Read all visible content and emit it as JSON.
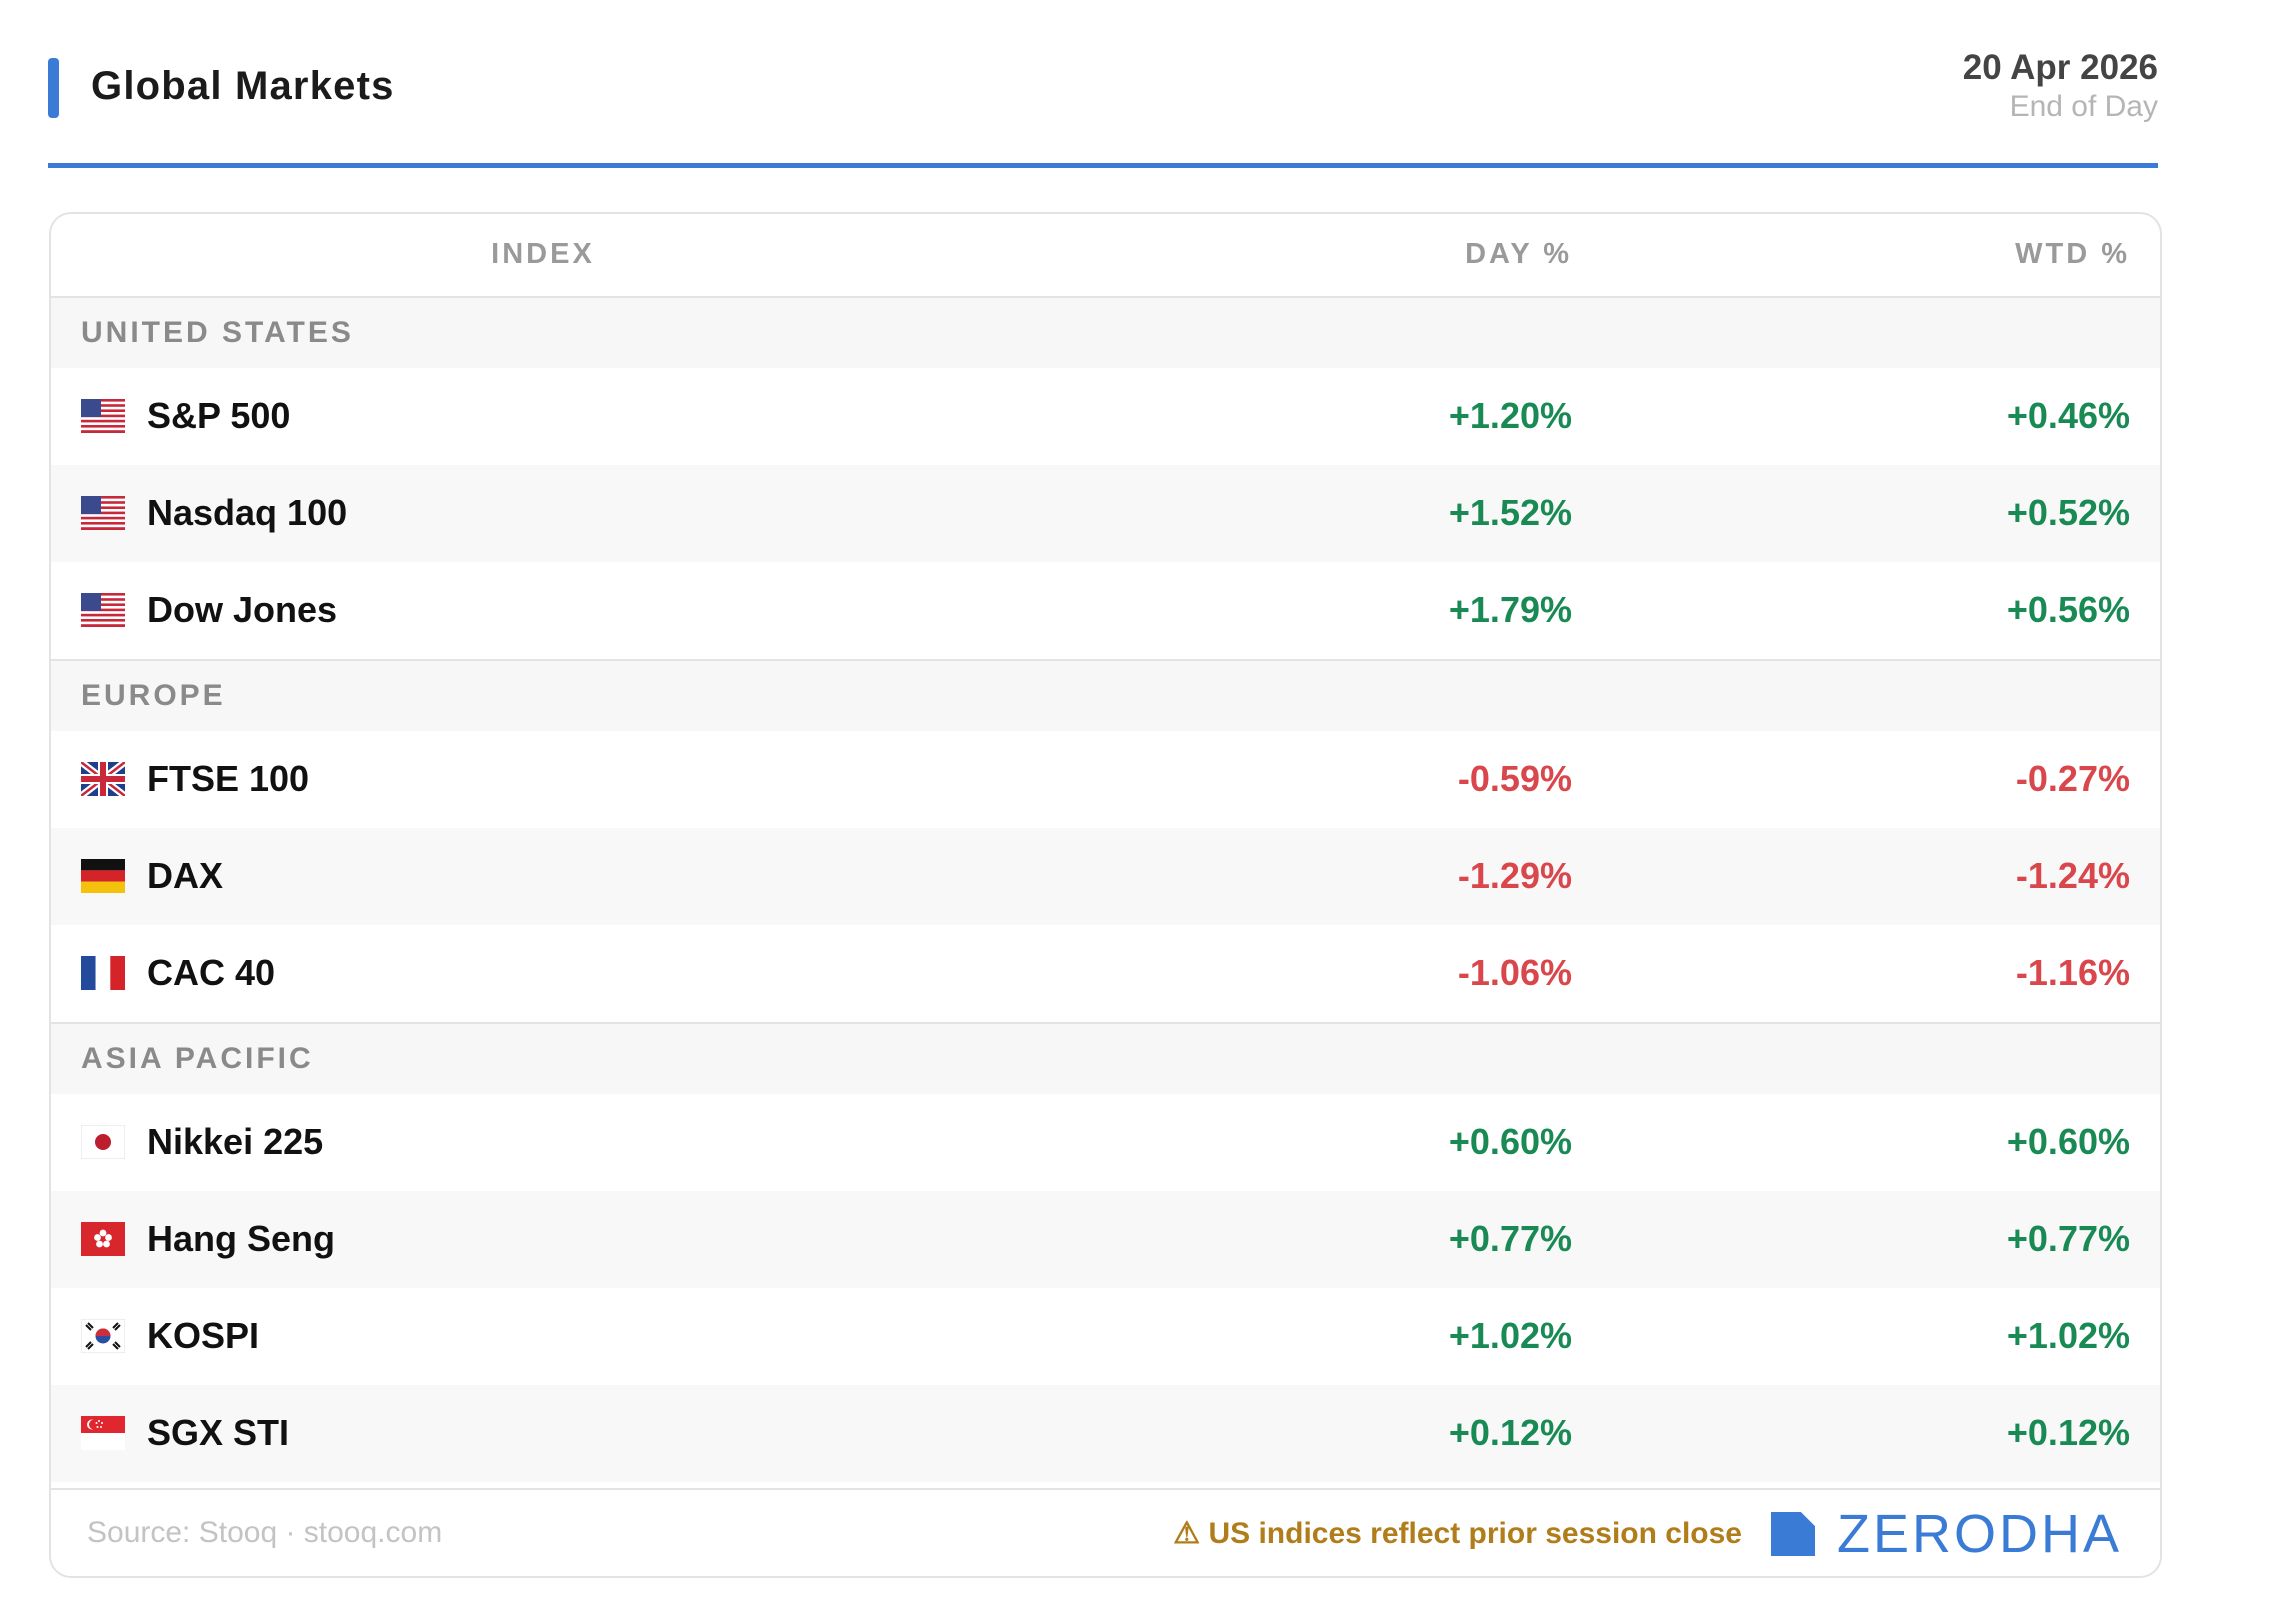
{
  "header": {
    "title": "Global Markets",
    "date": "20 Apr 2026",
    "subtitle": "End of Day",
    "accent_color": "#3a7bd5"
  },
  "table": {
    "columns": {
      "index": "INDEX",
      "day": "DAY %",
      "wtd": "WTD %"
    },
    "groups": [
      {
        "name": "UNITED STATES",
        "rows": [
          {
            "flag": "us-flag-icon",
            "name": "S&P 500",
            "day": "+1.20%",
            "wtd": "+0.46%"
          },
          {
            "flag": "us-flag-icon",
            "name": "Nasdaq 100",
            "day": "+1.52%",
            "wtd": "+0.52%"
          },
          {
            "flag": "us-flag-icon",
            "name": "Dow Jones",
            "day": "+1.79%",
            "wtd": "+0.56%"
          }
        ]
      },
      {
        "name": "EUROPE",
        "rows": [
          {
            "flag": "uk-flag-icon",
            "name": "FTSE 100",
            "day": "-0.59%",
            "wtd": "-0.27%"
          },
          {
            "flag": "germany-flag-icon",
            "name": "DAX",
            "day": "-1.29%",
            "wtd": "-1.24%"
          },
          {
            "flag": "france-flag-icon",
            "name": "CAC 40",
            "day": "-1.06%",
            "wtd": "-1.16%"
          }
        ]
      },
      {
        "name": "ASIA PACIFIC",
        "rows": [
          {
            "flag": "japan-flag-icon",
            "name": "Nikkei 225",
            "day": "+0.60%",
            "wtd": "+0.60%"
          },
          {
            "flag": "hong-kong-flag-icon",
            "name": "Hang Seng",
            "day": "+0.77%",
            "wtd": "+0.77%"
          },
          {
            "flag": "south-korea-flag-icon",
            "name": "KOSPI",
            "day": "+1.02%",
            "wtd": "+1.02%"
          },
          {
            "flag": "singapore-flag-icon",
            "name": "SGX STI",
            "day": "+0.12%",
            "wtd": "+0.12%"
          }
        ]
      }
    ]
  },
  "footer": {
    "source": "Source: Stooq · stooq.com",
    "warning": "⚠ US indices reflect prior session close",
    "brand": "ZERODHA"
  },
  "colors": {
    "positive": "#1a8a55",
    "negative": "#d9464b",
    "warning": "#b07d1a"
  }
}
